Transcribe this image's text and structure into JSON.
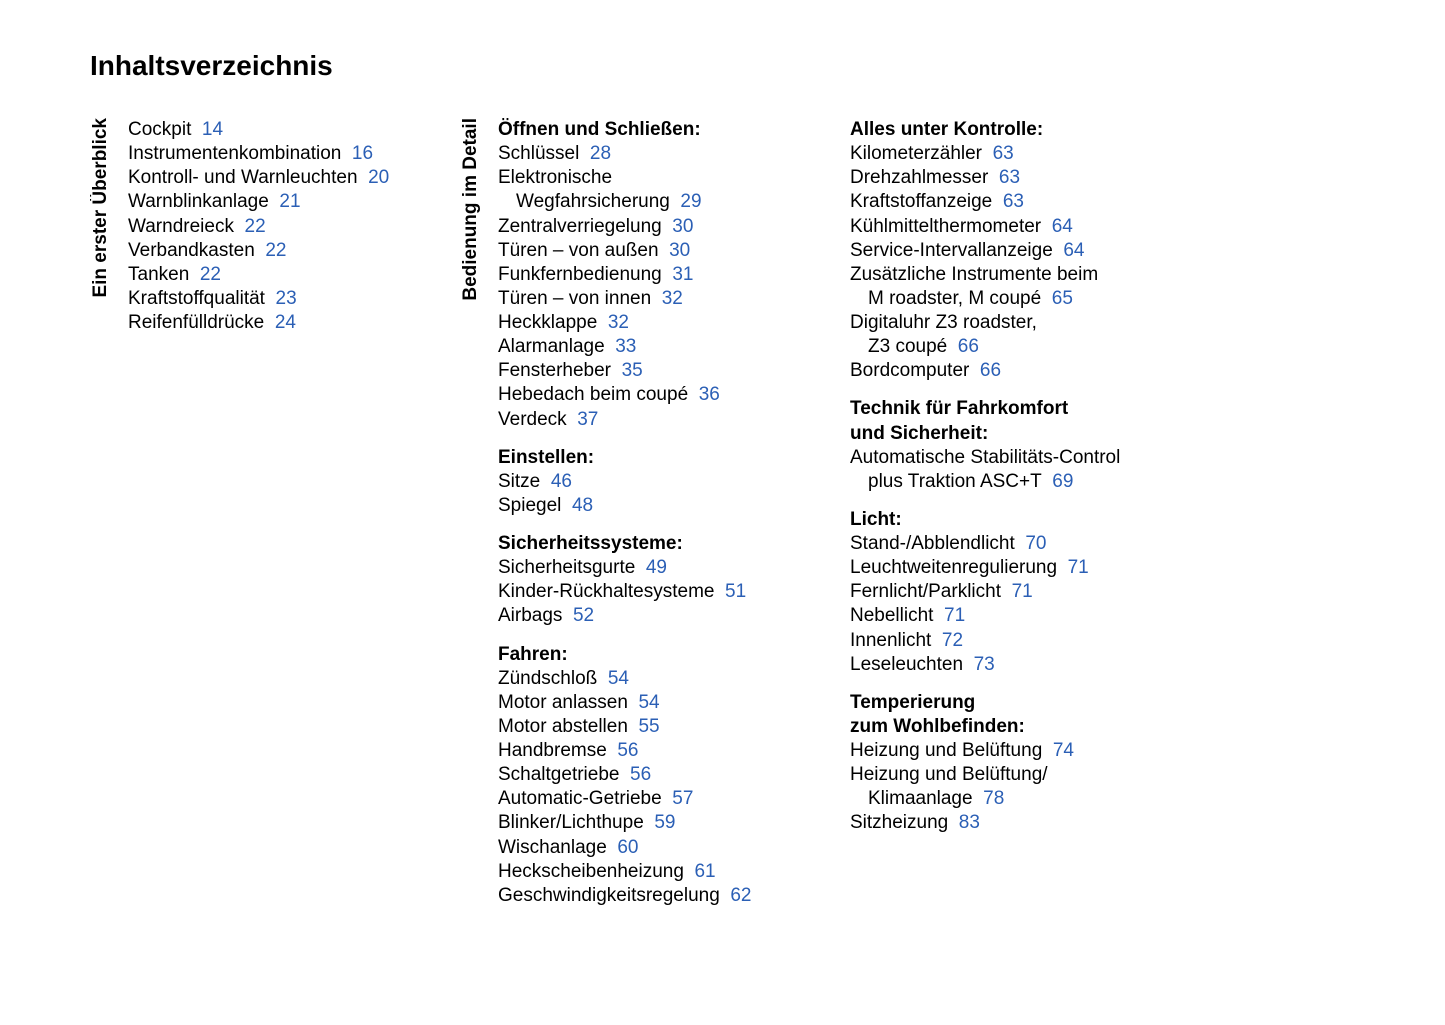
{
  "title": "Inhaltsverzeichnis",
  "colors": {
    "page_link": "#2b5fb5",
    "text": "#000000",
    "background": "#ffffff"
  },
  "sections": [
    {
      "label": "Ein erster Überblick",
      "entries": [
        {
          "label": "Cockpit",
          "page": "14"
        },
        {
          "label": "Instrumentenkombination",
          "page": "16"
        },
        {
          "label": "Kontroll- und Warnleuchten",
          "page": "20"
        },
        {
          "label": "Warnblinkanlage",
          "page": "21"
        },
        {
          "label": "Warndreieck",
          "page": "22"
        },
        {
          "label": "Verbandkasten",
          "page": "22"
        },
        {
          "label": "Tanken",
          "page": "22"
        },
        {
          "label": "Kraftstoffqualität",
          "page": "23"
        },
        {
          "label": "Reifenfülldrücke",
          "page": "24"
        }
      ]
    },
    {
      "label": "Bedienung im Detail",
      "subsections": [
        {
          "title": "Öffnen und Schließen:",
          "entries": [
            {
              "label": "Schlüssel",
              "page": "28"
            },
            {
              "label": "Elektronische"
            },
            {
              "label": "Wegfahrsicherung",
              "page": "29",
              "indent": true
            },
            {
              "label": "Zentralverriegelung",
              "page": "30"
            },
            {
              "label": "Türen – von außen",
              "page": "30"
            },
            {
              "label": "Funkfernbedienung",
              "page": "31"
            },
            {
              "label": "Türen – von innen",
              "page": "32"
            },
            {
              "label": "Heckklappe",
              "page": "32"
            },
            {
              "label": "Alarmanlage",
              "page": "33"
            },
            {
              "label": "Fensterheber",
              "page": "35"
            },
            {
              "label": "Hebedach beim coupé",
              "page": "36"
            },
            {
              "label": "Verdeck",
              "page": "37"
            }
          ]
        },
        {
          "title": "Einstellen:",
          "entries": [
            {
              "label": "Sitze",
              "page": "46"
            },
            {
              "label": "Spiegel",
              "page": "48"
            }
          ]
        },
        {
          "title": "Sicherheitssysteme:",
          "entries": [
            {
              "label": "Sicherheitsgurte",
              "page": "49"
            },
            {
              "label": "Kinder-Rückhaltesysteme",
              "page": "51"
            },
            {
              "label": "Airbags",
              "page": "52"
            }
          ]
        },
        {
          "title": "Fahren:",
          "entries": [
            {
              "label": "Zündschloß",
              "page": "54"
            },
            {
              "label": "Motor anlassen",
              "page": "54"
            },
            {
              "label": "Motor abstellen",
              "page": "55"
            },
            {
              "label": "Handbremse",
              "page": "56"
            },
            {
              "label": "Schaltgetriebe",
              "page": "56"
            },
            {
              "label": "Automatic-Getriebe",
              "page": "57"
            },
            {
              "label": "Blinker/Lichthupe",
              "page": "59"
            },
            {
              "label": "Wischanlage",
              "page": "60"
            },
            {
              "label": "Heckscheibenheizung",
              "page": "61"
            },
            {
              "label": "Geschwindigkeitsregelung",
              "page": "62"
            }
          ]
        }
      ]
    },
    {
      "subsections": [
        {
          "title": "Alles unter Kontrolle:",
          "entries": [
            {
              "label": "Kilometerzähler",
              "page": "63"
            },
            {
              "label": "Drehzahlmesser",
              "page": "63"
            },
            {
              "label": "Kraftstoffanzeige",
              "page": "63"
            },
            {
              "label": "Kühlmittelthermometer",
              "page": "64"
            },
            {
              "label": "Service-Intervallanzeige",
              "page": "64"
            },
            {
              "label": "Zusätzliche Instrumente beim"
            },
            {
              "label": "M roadster, M coupé",
              "page": "65",
              "indent": true
            },
            {
              "label": "Digitaluhr Z3 roadster,"
            },
            {
              "label": "Z3 coupé",
              "page": "66",
              "indent": true
            },
            {
              "label": "Bordcomputer",
              "page": "66"
            }
          ]
        },
        {
          "title": "Technik für Fahrkomfort\nund Sicherheit:",
          "entries": [
            {
              "label": "Automatische Stabilitäts-Control"
            },
            {
              "label": "plus Traktion ASC+T",
              "page": "69",
              "indent": true
            }
          ]
        },
        {
          "title": "Licht:",
          "entries": [
            {
              "label": "Stand-/Abblendlicht",
              "page": "70"
            },
            {
              "label": "Leuchtweitenregulierung",
              "page": "71"
            },
            {
              "label": "Fernlicht/Parklicht",
              "page": "71"
            },
            {
              "label": "Nebellicht",
              "page": "71"
            },
            {
              "label": "Innenlicht",
              "page": "72"
            },
            {
              "label": "Leseleuchten",
              "page": "73"
            }
          ]
        },
        {
          "title": "Temperierung\nzum Wohlbefinden:",
          "entries": [
            {
              "label": "Heizung und Belüftung",
              "page": "74"
            },
            {
              "label": "Heizung und Belüftung/"
            },
            {
              "label": "Klimaanlage",
              "page": "78",
              "indent": true
            },
            {
              "label": "Sitzheizung",
              "page": "83"
            }
          ]
        }
      ]
    }
  ]
}
